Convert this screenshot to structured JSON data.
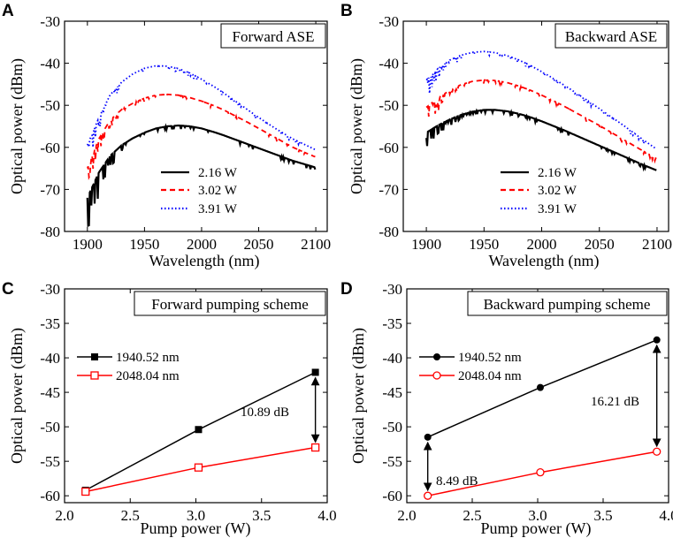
{
  "colors": {
    "black": "#000000",
    "red": "#ff0000",
    "blue": "#0000ff"
  },
  "chart_data": [
    {
      "panel": "A",
      "type": "line",
      "title": "Forward ASE",
      "xlabel": "Wavelength (nm)",
      "ylabel": "Optical power (dBm)",
      "xlim": [
        1880,
        2110
      ],
      "ylim": [
        -80,
        -30
      ],
      "xticks": [
        1900,
        1950,
        2000,
        2050,
        2100
      ],
      "xtick_labels": [
        "1900",
        "1950",
        "2000",
        "2050",
        "2100"
      ],
      "yticks": [
        -80,
        -70,
        -60,
        -50,
        -40,
        -30
      ],
      "ytick_labels": [
        "-80",
        "-70",
        "-60",
        "-50",
        "-40",
        "-30"
      ],
      "legend_position": "center-right",
      "series": [
        {
          "name": "2.16 W",
          "label": "2.16 W",
          "style": "solid",
          "color": "#000000",
          "x": [
            1900,
            1910,
            1920,
            1930,
            1940,
            1950,
            1960,
            1970,
            1980,
            1990,
            2000,
            2010,
            2020,
            2030,
            2040,
            2050,
            2060,
            2070,
            2080,
            2090,
            2100
          ],
          "values": [
            -72,
            -66,
            -62,
            -59.5,
            -57.8,
            -56.5,
            -55.5,
            -55,
            -54.8,
            -55,
            -55.5,
            -56.3,
            -57.2,
            -58.2,
            -59.2,
            -60.2,
            -61.2,
            -62.2,
            -63.2,
            -64,
            -64.8
          ]
        },
        {
          "name": "3.02 W",
          "label": "3.02 W",
          "style": "dashed",
          "color": "#ff0000",
          "x": [
            1900,
            1910,
            1920,
            1930,
            1940,
            1950,
            1960,
            1970,
            1980,
            1990,
            2000,
            2010,
            2020,
            2030,
            2040,
            2050,
            2060,
            2070,
            2080,
            2090,
            2100
          ],
          "values": [
            -65,
            -58,
            -53.5,
            -51,
            -49.5,
            -48.3,
            -47.6,
            -47.4,
            -47.6,
            -48.2,
            -49,
            -50,
            -51.2,
            -52.6,
            -54,
            -55.5,
            -57,
            -58.5,
            -60,
            -61.2,
            -62.3
          ]
        },
        {
          "name": "3.91 W",
          "label": "3.91 W",
          "style": "dotted",
          "color": "#0000ff",
          "x": [
            1900,
            1910,
            1920,
            1930,
            1940,
            1950,
            1960,
            1970,
            1980,
            1990,
            2000,
            2010,
            2020,
            2030,
            2040,
            2050,
            2060,
            2070,
            2080,
            2090,
            2100
          ],
          "values": [
            -59.5,
            -53,
            -47.5,
            -44.5,
            -42.5,
            -41.2,
            -40.6,
            -40.7,
            -41.3,
            -42.4,
            -43.8,
            -45.4,
            -47.2,
            -49.1,
            -51,
            -52.9,
            -54.7,
            -56.4,
            -58,
            -59.3,
            -60.6
          ]
        }
      ]
    },
    {
      "panel": "B",
      "type": "line",
      "title": "Backward ASE",
      "xlabel": "Wavelength (nm)",
      "ylabel": "Optical power (dBm)",
      "xlim": [
        1880,
        2110
      ],
      "ylim": [
        -80,
        -30
      ],
      "xticks": [
        1900,
        1950,
        2000,
        2050,
        2100
      ],
      "xtick_labels": [
        "1900",
        "1950",
        "2000",
        "2050",
        "2100"
      ],
      "yticks": [
        -80,
        -70,
        -60,
        -50,
        -40,
        -30
      ],
      "ytick_labels": [
        "-80",
        "-70",
        "-60",
        "-50",
        "-40",
        "-30"
      ],
      "legend_position": "center-right",
      "series": [
        {
          "name": "2.16 W",
          "label": "2.16 W",
          "style": "solid",
          "color": "#000000",
          "x": [
            1900,
            1910,
            1920,
            1930,
            1940,
            1950,
            1960,
            1970,
            1980,
            1990,
            2000,
            2010,
            2020,
            2030,
            2040,
            2050,
            2060,
            2070,
            2080,
            2090,
            2100
          ],
          "values": [
            -56.5,
            -54.8,
            -53.4,
            -52.3,
            -51.5,
            -51.1,
            -51.1,
            -51.4,
            -52,
            -52.8,
            -53.8,
            -54.9,
            -56,
            -57.2,
            -58.4,
            -59.6,
            -60.8,
            -62,
            -63.2,
            -64.4,
            -65.5
          ]
        },
        {
          "name": "3.02 W",
          "label": "3.02 W",
          "style": "dashed",
          "color": "#ff0000",
          "x": [
            1900,
            1910,
            1920,
            1930,
            1940,
            1950,
            1960,
            1970,
            1980,
            1990,
            2000,
            2010,
            2020,
            2030,
            2040,
            2050,
            2060,
            2070,
            2080,
            2090,
            2100
          ],
          "values": [
            -50.5,
            -48.3,
            -46.5,
            -45.1,
            -44.3,
            -44,
            -44.1,
            -44.6,
            -45.4,
            -46.4,
            -47.6,
            -48.9,
            -50.3,
            -51.8,
            -53.3,
            -54.8,
            -56.4,
            -58,
            -59.6,
            -61.2,
            -62.8
          ]
        },
        {
          "name": "3.91 W",
          "label": "3.91 W",
          "style": "dotted",
          "color": "#0000ff",
          "x": [
            1900,
            1910,
            1920,
            1930,
            1940,
            1950,
            1960,
            1970,
            1980,
            1990,
            2000,
            2010,
            2020,
            2030,
            2040,
            2050,
            2060,
            2070,
            2080,
            2090,
            2100
          ],
          "values": [
            -44,
            -41.3,
            -39.3,
            -38.1,
            -37.4,
            -37.2,
            -37.5,
            -38.2,
            -39.2,
            -40.5,
            -42,
            -43.6,
            -45.3,
            -47.1,
            -48.9,
            -50.8,
            -52.7,
            -54.6,
            -56.6,
            -58.6,
            -60.5
          ]
        }
      ]
    },
    {
      "panel": "C",
      "type": "line",
      "title": "Forward pumping scheme",
      "xlabel": "Pump power (W)",
      "ylabel": "Optical power (dBm)",
      "xlim": [
        2.0,
        4.0
      ],
      "ylim": [
        -61,
        -30
      ],
      "xticks": [
        2.0,
        2.5,
        3.0,
        3.5,
        4.0
      ],
      "xtick_labels": [
        "2.0",
        "2.5",
        "3.0",
        "3.5",
        "4.0"
      ],
      "yticks": [
        -60,
        -55,
        -50,
        -45,
        -40,
        -35,
        -30
      ],
      "ytick_labels": [
        "-60",
        "-55",
        "-50",
        "-45",
        "-40",
        "-35",
        "-30"
      ],
      "legend_position": "upper-left",
      "series": [
        {
          "name": "1940.52 nm",
          "label": "1940.52 nm",
          "marker": "filled-square",
          "color": "#000000",
          "x": [
            2.16,
            3.02,
            3.91
          ],
          "values": [
            -59.2,
            -50.4,
            -42.1
          ]
        },
        {
          "name": "2048.04 nm",
          "label": "2048.04 nm",
          "marker": "open-square",
          "color": "#ff0000",
          "x": [
            2.16,
            3.02,
            3.91
          ],
          "values": [
            -59.4,
            -55.9,
            -53.0
          ]
        }
      ],
      "annotations": [
        {
          "text": "10.89 dB",
          "x": 3.91,
          "y_from": -42.1,
          "y_to": -53.0
        }
      ]
    },
    {
      "panel": "D",
      "type": "line",
      "title": "Backward pumping scheme",
      "xlabel": "Pump power (W)",
      "ylabel": "Optical power (dBm)",
      "xlim": [
        2.0,
        4.0
      ],
      "ylim": [
        -61,
        -30
      ],
      "xticks": [
        2.0,
        2.5,
        3.0,
        3.5,
        4.0
      ],
      "xtick_labels": [
        "2.0",
        "2.5",
        "3.0",
        "3.5",
        "4.0"
      ],
      "yticks": [
        -60,
        -55,
        -50,
        -45,
        -40,
        -35,
        -30
      ],
      "ytick_labels": [
        "-60",
        "-55",
        "-50",
        "-45",
        "-40",
        "-35",
        "-30"
      ],
      "legend_position": "upper-left",
      "series": [
        {
          "name": "1940.52 nm",
          "label": "1940.52 nm",
          "marker": "filled-circle",
          "color": "#000000",
          "x": [
            2.16,
            3.02,
            3.91
          ],
          "values": [
            -51.5,
            -44.3,
            -37.4
          ]
        },
        {
          "name": "2048.04 nm",
          "label": "2048.04 nm",
          "marker": "open-circle",
          "color": "#ff0000",
          "x": [
            2.16,
            3.02,
            3.91
          ],
          "values": [
            -60.0,
            -56.6,
            -53.6
          ]
        }
      ],
      "annotations": [
        {
          "text": "8.49 dB",
          "x": 2.16,
          "y_from": -51.5,
          "y_to": -60.0
        },
        {
          "text": "16.21 dB",
          "x": 3.91,
          "y_from": -37.4,
          "y_to": -53.6
        }
      ]
    }
  ]
}
